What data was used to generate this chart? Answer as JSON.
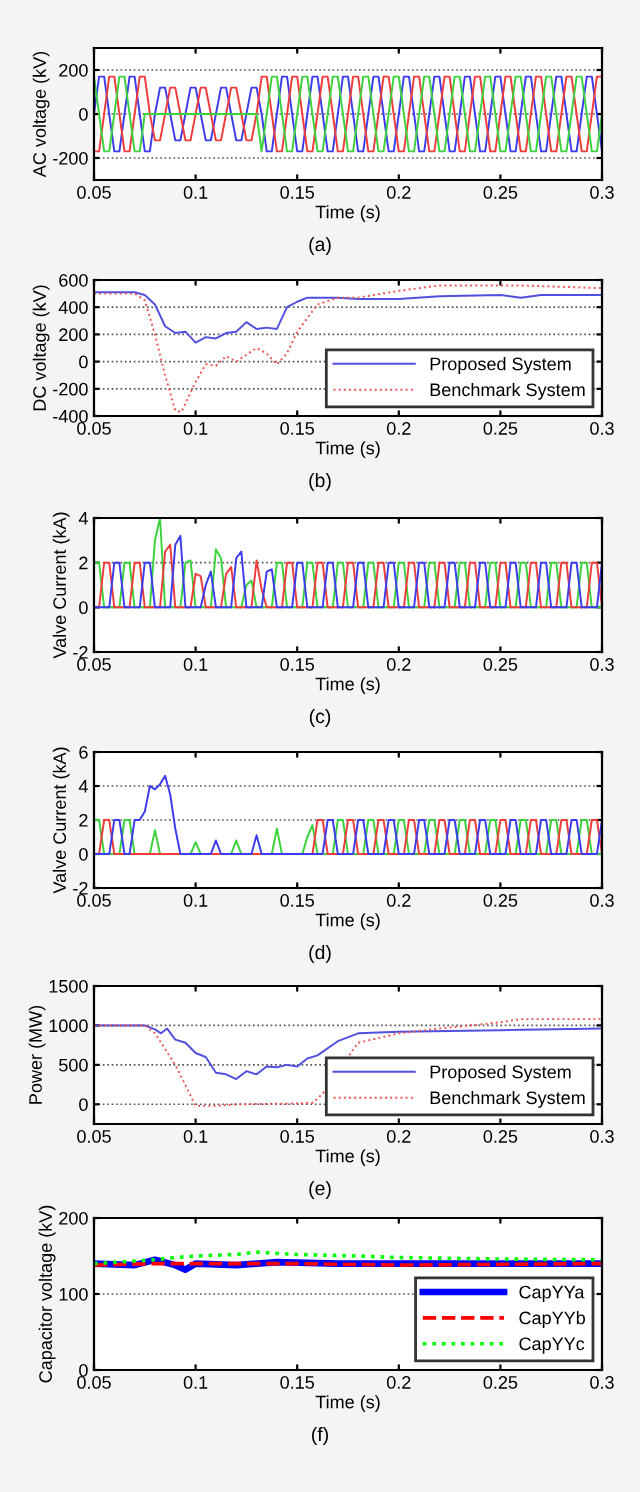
{
  "chart_data": [
    {
      "type": "line",
      "ylabel": "AC voltage (kV)",
      "xlabel": "Time (s)",
      "annotations": [
        "(a)"
      ],
      "grid": "y",
      "xlim": [
        0.05,
        0.3
      ],
      "ylim": [
        -300,
        300
      ],
      "xticks": [
        0.05,
        0.1,
        0.15,
        0.2,
        0.25,
        0.3
      ],
      "yticks": [
        -200,
        0,
        200
      ],
      "x": [
        0.05,
        0.0525,
        0.055,
        0.0575,
        0.06,
        0.0625,
        0.065,
        0.0675,
        0.07,
        0.0725,
        0.075,
        0.0775,
        0.08,
        0.0825,
        0.085,
        0.0875,
        0.09,
        0.0925,
        0.095,
        0.0975,
        0.1,
        0.1025,
        0.105,
        0.1075,
        0.11,
        0.1125,
        0.115,
        0.1175,
        0.12,
        0.1225,
        0.125,
        0.1275,
        0.13,
        0.1325,
        0.135,
        0.1375,
        0.14,
        0.1425,
        0.145,
        0.1475,
        0.15,
        0.1525,
        0.155,
        0.1575,
        0.16,
        0.1625,
        0.165,
        0.1675,
        0.17,
        0.1725,
        0.175,
        0.1775,
        0.18,
        0.1825,
        0.185,
        0.1875,
        0.19,
        0.1925,
        0.195,
        0.1975,
        0.2,
        0.2025,
        0.205,
        0.2075,
        0.21,
        0.2125,
        0.215,
        0.2175,
        0.22,
        0.2225,
        0.225,
        0.2275,
        0.23,
        0.2325,
        0.235,
        0.2375,
        0.24,
        0.2425,
        0.245,
        0.2475,
        0.25,
        0.2525,
        0.255,
        0.2575,
        0.26,
        0.2625,
        0.265,
        0.2675,
        0.27,
        0.2725,
        0.275,
        0.2775,
        0.28,
        0.2825,
        0.285,
        0.2875,
        0.29,
        0.2925,
        0.295,
        0.2975,
        0.3
      ],
      "series": [
        {
          "color": "#3b3bf0",
          "values": [
            0,
            170,
            170,
            0,
            -170,
            -170,
            0,
            170,
            170,
            0,
            -170,
            -170,
            0,
            120,
            120,
            0,
            -120,
            -120,
            0,
            120,
            120,
            0,
            -120,
            -120,
            0,
            120,
            120,
            0,
            -120,
            -120,
            0,
            120,
            120,
            0,
            -170,
            -170,
            0,
            170,
            170,
            0,
            -170,
            -170,
            0,
            170,
            170,
            0,
            -170,
            -170,
            0,
            170,
            170,
            0,
            -170,
            -170,
            0,
            170,
            170,
            0,
            -170,
            -170,
            0,
            170,
            170,
            0,
            -170,
            -170,
            0,
            170,
            170,
            0,
            -170,
            -170,
            0,
            170,
            170,
            0,
            -170,
            -170,
            0,
            170,
            170,
            0,
            -170,
            -170,
            0,
            170,
            170,
            0,
            -170,
            -170,
            0,
            170,
            170,
            0,
            -170,
            -170,
            0,
            170,
            170,
            0,
            -170
          ]
        },
        {
          "color": "#f03b3b",
          "values": [
            -170,
            -170,
            0,
            170,
            170,
            0,
            -170,
            -170,
            0,
            170,
            170,
            0,
            -120,
            -120,
            0,
            120,
            120,
            0,
            -120,
            -120,
            0,
            120,
            120,
            0,
            -120,
            -120,
            0,
            120,
            120,
            0,
            -120,
            -120,
            0,
            170,
            170,
            0,
            -170,
            -170,
            0,
            170,
            170,
            0,
            -170,
            -170,
            0,
            170,
            170,
            0,
            -170,
            -170,
            0,
            170,
            170,
            0,
            -170,
            -170,
            0,
            170,
            170,
            0,
            -170,
            -170,
            0,
            170,
            170,
            0,
            -170,
            -170,
            0,
            170,
            170,
            0,
            -170,
            -170,
            0,
            170,
            170,
            0,
            -170,
            -170,
            0,
            170,
            170,
            0,
            -170,
            -170,
            0,
            170,
            170,
            0,
            -170,
            -170,
            0,
            170,
            170,
            0,
            -170,
            -170,
            0,
            170,
            170
          ]
        },
        {
          "color": "#3bd23b",
          "values": [
            170,
            0,
            -170,
            -170,
            0,
            170,
            170,
            0,
            -170,
            -170,
            0,
            0,
            0,
            0,
            0,
            0,
            0,
            0,
            0,
            0,
            0,
            0,
            0,
            0,
            0,
            0,
            0,
            0,
            0,
            0,
            0,
            0,
            0,
            -170,
            0,
            170,
            170,
            0,
            -170,
            -170,
            0,
            170,
            170,
            0,
            -170,
            -170,
            0,
            170,
            170,
            0,
            -170,
            -170,
            0,
            170,
            170,
            0,
            -170,
            -170,
            0,
            170,
            170,
            0,
            -170,
            -170,
            0,
            170,
            170,
            0,
            -170,
            -170,
            0,
            170,
            170,
            0,
            -170,
            -170,
            0,
            170,
            170,
            0,
            -170,
            -170,
            0,
            170,
            170,
            0,
            -170,
            -170,
            0,
            170,
            170,
            0,
            -170,
            -170,
            0,
            170,
            170,
            0,
            -170,
            -170,
            0
          ]
        }
      ]
    },
    {
      "type": "line",
      "ylabel": "DC voltage (kV)",
      "xlabel": "Time (s)",
      "annotations": [
        "(b)"
      ],
      "grid": "y",
      "legend": "bottom right",
      "xlim": [
        0.05,
        0.3
      ],
      "ylim": [
        -400,
        600
      ],
      "xticks": [
        0.05,
        0.1,
        0.15,
        0.2,
        0.25,
        0.3
      ],
      "yticks": [
        -400,
        -200,
        0,
        200,
        400,
        600
      ],
      "series": [
        {
          "name": "Proposed System",
          "color": "#5050e0",
          "line_style": "solid",
          "x": [
            0.05,
            0.07,
            0.075,
            0.08,
            0.085,
            0.09,
            0.095,
            0.1,
            0.105,
            0.11,
            0.115,
            0.12,
            0.125,
            0.13,
            0.135,
            0.14,
            0.145,
            0.15,
            0.155,
            0.16,
            0.17,
            0.18,
            0.2,
            0.22,
            0.25,
            0.26,
            0.27,
            0.3
          ],
          "values": [
            510,
            510,
            490,
            420,
            260,
            210,
            220,
            140,
            180,
            170,
            210,
            220,
            290,
            240,
            250,
            240,
            400,
            440,
            470,
            470,
            470,
            460,
            460,
            480,
            490,
            470,
            490,
            490
          ]
        },
        {
          "name": "Benchmark System",
          "color": "#f05050",
          "line_style": "dotted",
          "x": [
            0.05,
            0.07,
            0.075,
            0.08,
            0.085,
            0.09,
            0.093,
            0.1,
            0.105,
            0.11,
            0.115,
            0.12,
            0.125,
            0.13,
            0.135,
            0.14,
            0.145,
            0.15,
            0.16,
            0.17,
            0.18,
            0.2,
            0.22,
            0.26,
            0.3
          ],
          "values": [
            500,
            500,
            450,
            200,
            -100,
            -360,
            -370,
            -150,
            -20,
            -30,
            40,
            0,
            50,
            100,
            60,
            -20,
            60,
            220,
            420,
            470,
            470,
            520,
            560,
            560,
            540
          ]
        }
      ]
    },
    {
      "type": "line",
      "ylabel": "Valve Current (kA)",
      "xlabel": "Time (s)",
      "annotations": [
        "(c)"
      ],
      "grid": "y",
      "xlim": [
        0.05,
        0.3
      ],
      "ylim": [
        -2,
        4
      ],
      "xticks": [
        0.05,
        0.1,
        0.15,
        0.2,
        0.25,
        0.3
      ],
      "yticks": [
        -2,
        0,
        2,
        4
      ],
      "x": [
        0.05,
        0.0525,
        0.055,
        0.0575,
        0.06,
        0.0625,
        0.065,
        0.0675,
        0.07,
        0.0725,
        0.075,
        0.0775,
        0.08,
        0.0825,
        0.085,
        0.0875,
        0.09,
        0.0925,
        0.095,
        0.0975,
        0.1,
        0.1025,
        0.105,
        0.1075,
        0.11,
        0.1125,
        0.115,
        0.1175,
        0.12,
        0.1225,
        0.125,
        0.1275,
        0.13,
        0.1325,
        0.135,
        0.1375,
        0.14,
        0.1425,
        0.145,
        0.1475,
        0.15,
        0.1525,
        0.155,
        0.1575,
        0.16,
        0.1625,
        0.165,
        0.1675,
        0.17,
        0.1725,
        0.175,
        0.1775,
        0.18,
        0.1825,
        0.185,
        0.1875,
        0.19,
        0.1925,
        0.195,
        0.1975,
        0.2,
        0.2025,
        0.205,
        0.2075,
        0.21,
        0.2125,
        0.215,
        0.2175,
        0.22,
        0.2225,
        0.225,
        0.2275,
        0.23,
        0.2325,
        0.235,
        0.2375,
        0.24,
        0.2425,
        0.245,
        0.2475,
        0.25,
        0.2525,
        0.255,
        0.2575,
        0.26,
        0.2625,
        0.265,
        0.2675,
        0.27,
        0.2725,
        0.275,
        0.2775,
        0.28,
        0.2825,
        0.285,
        0.2875,
        0.29,
        0.2925,
        0.295,
        0.2975,
        0.3
      ],
      "series": [
        {
          "color": "#3bd23b",
          "values": [
            2,
            2,
            0,
            0,
            0,
            0,
            2,
            2,
            0,
            0,
            0,
            0,
            3,
            4,
            0,
            0,
            0,
            0,
            2,
            2.1,
            0,
            0,
            0,
            0,
            2.6,
            2.2,
            0,
            0,
            0,
            0,
            1,
            1.2,
            0,
            0,
            0,
            0,
            2,
            2,
            0,
            0,
            0,
            0,
            2,
            2,
            0,
            0,
            0,
            0,
            2,
            2,
            0,
            0,
            0,
            0,
            2,
            2,
            0,
            0,
            0,
            0,
            2,
            2,
            0,
            0,
            0,
            0,
            2,
            2,
            0,
            0,
            0,
            0,
            2,
            2,
            0,
            0,
            0,
            0,
            2,
            2,
            0,
            0,
            0,
            0,
            2,
            2,
            0,
            0,
            0,
            0,
            2,
            2,
            0,
            0,
            0,
            0,
            2,
            2,
            0,
            0,
            0
          ]
        },
        {
          "color": "#f03b3b",
          "values": [
            0,
            0,
            2,
            2,
            0,
            0,
            0,
            0,
            2,
            2,
            0,
            0,
            0,
            0,
            2.5,
            2.8,
            0,
            0,
            0,
            0,
            1.5,
            1.4,
            0,
            0,
            0,
            0,
            1.5,
            1.8,
            0,
            0,
            0,
            0,
            2.1,
            0.8,
            0,
            0,
            0,
            0,
            2,
            2,
            0,
            0,
            0,
            0,
            2,
            2,
            0,
            0,
            0,
            0,
            2,
            2,
            0,
            0,
            0,
            0,
            2,
            2,
            0,
            0,
            0,
            0,
            2,
            2,
            0,
            0,
            0,
            0,
            2,
            2,
            0,
            0,
            0,
            0,
            2,
            2,
            0,
            0,
            0,
            0,
            2,
            2,
            0,
            0,
            0,
            0,
            2,
            2,
            0,
            0,
            0,
            0,
            2,
            2,
            0,
            0,
            0,
            0,
            2,
            2,
            0
          ]
        },
        {
          "color": "#3b3bf0",
          "values": [
            0,
            0,
            0,
            0,
            2,
            2,
            0,
            0,
            0,
            0,
            2,
            2,
            0,
            0,
            0,
            0,
            2.8,
            3.2,
            0,
            0,
            0,
            0,
            1,
            1.6,
            0,
            0,
            0,
            0,
            2.2,
            2.5,
            0,
            0,
            0,
            0,
            1.6,
            1.7,
            0,
            0,
            0,
            0,
            2,
            2,
            0,
            0,
            0,
            0,
            2,
            2,
            0,
            0,
            0,
            0,
            2,
            2,
            0,
            0,
            0,
            0,
            2,
            2,
            0,
            0,
            0,
            0,
            2,
            2,
            0,
            0,
            0,
            0,
            2,
            2,
            0,
            0,
            0,
            0,
            2,
            2,
            0,
            0,
            0,
            0,
            2,
            2,
            0,
            0,
            0,
            0,
            2,
            2,
            0,
            0,
            0,
            0,
            2,
            2,
            0,
            0,
            0,
            0,
            2
          ]
        }
      ]
    },
    {
      "type": "line",
      "ylabel": "Valve Current (kA)",
      "xlabel": "Time (s)",
      "annotations": [
        "(d)"
      ],
      "grid": "y",
      "xlim": [
        0.05,
        0.3
      ],
      "ylim": [
        -2,
        6
      ],
      "xticks": [
        0.05,
        0.1,
        0.15,
        0.2,
        0.25,
        0.3
      ],
      "yticks": [
        -2,
        0,
        2,
        4,
        6
      ],
      "x": [
        0.05,
        0.0525,
        0.055,
        0.0575,
        0.06,
        0.0625,
        0.065,
        0.0675,
        0.07,
        0.0725,
        0.075,
        0.0775,
        0.08,
        0.0825,
        0.085,
        0.0875,
        0.09,
        0.0925,
        0.095,
        0.0975,
        0.1,
        0.1025,
        0.105,
        0.1075,
        0.11,
        0.1125,
        0.115,
        0.1175,
        0.12,
        0.1225,
        0.125,
        0.1275,
        0.13,
        0.1325,
        0.135,
        0.1375,
        0.14,
        0.1425,
        0.145,
        0.1475,
        0.15,
        0.1525,
        0.155,
        0.1575,
        0.16,
        0.1625,
        0.165,
        0.1675,
        0.17,
        0.1725,
        0.175,
        0.1775,
        0.18,
        0.1825,
        0.185,
        0.1875,
        0.19,
        0.1925,
        0.195,
        0.1975,
        0.2,
        0.2025,
        0.205,
        0.2075,
        0.21,
        0.2125,
        0.215,
        0.2175,
        0.22,
        0.2225,
        0.225,
        0.2275,
        0.23,
        0.2325,
        0.235,
        0.2375,
        0.24,
        0.2425,
        0.245,
        0.2475,
        0.25,
        0.2525,
        0.255,
        0.2575,
        0.26,
        0.2625,
        0.265,
        0.2675,
        0.27,
        0.2725,
        0.275,
        0.2775,
        0.28,
        0.2825,
        0.285,
        0.2875,
        0.29,
        0.2925,
        0.295,
        0.2975,
        0.3
      ],
      "series": [
        {
          "color": "#3bd23b",
          "values": [
            2,
            2,
            0,
            0,
            0,
            0,
            2,
            2,
            0,
            0,
            0,
            0,
            1.4,
            0,
            0,
            0,
            0,
            0,
            0,
            0,
            0.7,
            0,
            0,
            0,
            0,
            0,
            0,
            0,
            0.8,
            0,
            0,
            0,
            0,
            0,
            0,
            0,
            1.5,
            0,
            0,
            0,
            0,
            0,
            1,
            1.7,
            0,
            0,
            0,
            0,
            2,
            2,
            0,
            0,
            0,
            0,
            2,
            2,
            0,
            0,
            0,
            0,
            2,
            2,
            0,
            0,
            0,
            0,
            2,
            2,
            0,
            0,
            0,
            0,
            2,
            2,
            0,
            0,
            0,
            0,
            2,
            2,
            0,
            0,
            0,
            0,
            2,
            2,
            0,
            0,
            0,
            0,
            2,
            2,
            0,
            0,
            0,
            0,
            2,
            2,
            0,
            0,
            0
          ]
        },
        {
          "color": "#f03b3b",
          "values": [
            0,
            0,
            2,
            2,
            0,
            0,
            0,
            0,
            0,
            0,
            0,
            0,
            0,
            0,
            0,
            0,
            0,
            0,
            0,
            0,
            0,
            0,
            0,
            0,
            0,
            0,
            0,
            0,
            0,
            0,
            0,
            0,
            0,
            0,
            0,
            0,
            0,
            0,
            0,
            0,
            0,
            0,
            0,
            0,
            2,
            2,
            0,
            0,
            0,
            0,
            2,
            2,
            0,
            0,
            0,
            0,
            2,
            2,
            0,
            0,
            0,
            0,
            2,
            2,
            0,
            0,
            0,
            0,
            2,
            2,
            0,
            0,
            0,
            0,
            2,
            2,
            0,
            0,
            0,
            0,
            2,
            2,
            0,
            0,
            0,
            0,
            2,
            2,
            0,
            0,
            0,
            0,
            2,
            2,
            0,
            0,
            0,
            0,
            2,
            2,
            0
          ]
        },
        {
          "color": "#3b3bf0",
          "values": [
            0,
            0,
            0,
            0,
            2,
            2,
            0,
            0,
            2,
            2,
            2.5,
            4,
            3.8,
            4.1,
            4.6,
            3.5,
            1.5,
            0,
            0,
            0,
            0,
            0,
            0,
            0,
            0.8,
            0,
            0,
            0,
            0,
            0,
            0,
            0,
            1.1,
            0,
            0,
            0,
            0,
            0,
            0,
            0,
            0,
            0,
            0,
            0,
            0,
            0,
            2,
            2,
            0,
            0,
            0,
            0,
            2,
            2,
            0,
            0,
            0,
            0,
            2,
            2,
            0,
            0,
            0,
            0,
            2,
            2,
            0,
            0,
            0,
            0,
            2,
            2,
            0,
            0,
            0,
            0,
            2,
            2,
            0,
            0,
            0,
            0,
            2,
            2,
            0,
            0,
            0,
            0,
            2,
            2,
            0,
            0,
            0,
            0,
            2,
            2,
            0,
            0,
            0,
            0,
            2
          ]
        }
      ]
    },
    {
      "type": "line",
      "ylabel": "Power (MW)",
      "xlabel": "Time (s)",
      "annotations": [
        "(e)"
      ],
      "grid": "y",
      "legend": "bottom right",
      "xlim": [
        0.05,
        0.3
      ],
      "ylim": [
        -250,
        1500
      ],
      "xticks": [
        0.05,
        0.1,
        0.15,
        0.2,
        0.25,
        0.3
      ],
      "yticks": [
        0,
        500,
        1000,
        1500
      ],
      "series": [
        {
          "name": "Proposed System",
          "color": "#5050e0",
          "line_style": "solid",
          "x": [
            0.05,
            0.075,
            0.08,
            0.083,
            0.086,
            0.09,
            0.095,
            0.1,
            0.105,
            0.11,
            0.115,
            0.12,
            0.125,
            0.13,
            0.135,
            0.14,
            0.145,
            0.15,
            0.155,
            0.16,
            0.17,
            0.18,
            0.2,
            0.25,
            0.3
          ],
          "values": [
            1000,
            1000,
            950,
            900,
            960,
            820,
            780,
            650,
            600,
            400,
            380,
            320,
            420,
            380,
            480,
            470,
            500,
            480,
            580,
            620,
            800,
            900,
            920,
            940,
            960
          ]
        },
        {
          "name": "Benchmark System",
          "color": "#f05050",
          "line_style": "dotted",
          "x": [
            0.05,
            0.075,
            0.08,
            0.09,
            0.1,
            0.11,
            0.12,
            0.15,
            0.158,
            0.165,
            0.175,
            0.18,
            0.2,
            0.22,
            0.25,
            0.26,
            0.3
          ],
          "values": [
            1000,
            1000,
            900,
            500,
            -20,
            -20,
            0,
            10,
            20,
            200,
            600,
            780,
            900,
            960,
            1040,
            1080,
            1080
          ]
        }
      ]
    },
    {
      "type": "line",
      "ylabel": "Capacitor voltage (kV)",
      "xlabel": "Time (s)",
      "annotations": [
        "(f)"
      ],
      "grid": "y",
      "legend": "bottom right",
      "xlim": [
        0.05,
        0.3
      ],
      "ylim": [
        0,
        200
      ],
      "xticks": [
        0.05,
        0.1,
        0.15,
        0.2,
        0.25,
        0.3
      ],
      "yticks": [
        0,
        100,
        200
      ],
      "series": [
        {
          "name": "CapYYa",
          "color": "#0000ff",
          "line_style": "solid",
          "x": [
            0.05,
            0.07,
            0.08,
            0.09,
            0.095,
            0.1,
            0.12,
            0.14,
            0.17,
            0.2,
            0.25,
            0.3
          ],
          "values": [
            140,
            138,
            145,
            138,
            132,
            140,
            138,
            142,
            140,
            140,
            140,
            140
          ]
        },
        {
          "name": "CapYYb",
          "color": "#ff0000",
          "line_style": "dashed",
          "x": [
            0.05,
            0.08,
            0.1,
            0.15,
            0.2,
            0.3
          ],
          "values": [
            138,
            140,
            140,
            140,
            138,
            140
          ]
        },
        {
          "name": "CapYYc",
          "color": "#00ff00",
          "line_style": "dotted",
          "x": [
            0.05,
            0.08,
            0.09,
            0.1,
            0.12,
            0.13,
            0.15,
            0.18,
            0.2,
            0.25,
            0.3
          ],
          "values": [
            140,
            145,
            148,
            150,
            152,
            155,
            152,
            150,
            148,
            146,
            145
          ]
        }
      ]
    }
  ]
}
